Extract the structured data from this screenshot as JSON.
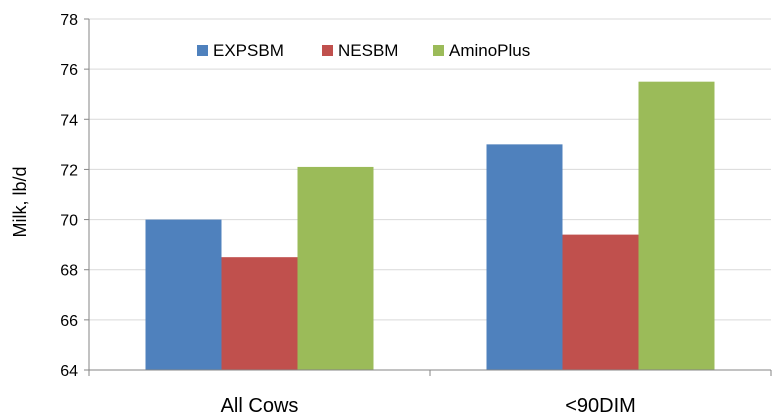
{
  "chart_data": {
    "type": "bar",
    "title": "",
    "xlabel": "",
    "ylabel": "Milk, lb/d",
    "ylim": [
      64,
      78
    ],
    "yticks": [
      64,
      66,
      68,
      70,
      72,
      74,
      76,
      78
    ],
    "grid": true,
    "legend_position": "top",
    "categories": [
      "All Cows",
      "<90DIM"
    ],
    "series": [
      {
        "name": "EXPSBM",
        "color": "#4F81BD",
        "values": [
          70.0,
          73.0
        ]
      },
      {
        "name": "NESBM",
        "color": "#C0504D",
        "values": [
          68.5,
          69.4
        ]
      },
      {
        "name": "AminoPlus",
        "color": "#9BBB59",
        "values": [
          72.1,
          75.5
        ]
      }
    ]
  }
}
